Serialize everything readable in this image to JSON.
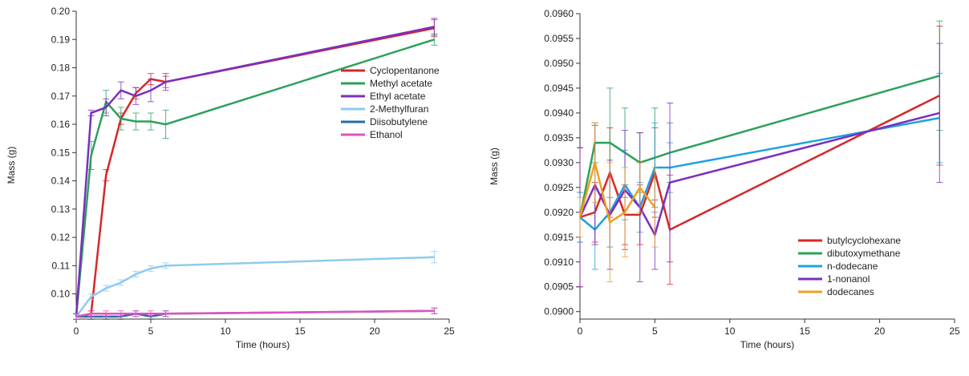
{
  "chart_data": [
    {
      "type": "line",
      "xlabel": "Time (hours)",
      "ylabel": "Mass (g)",
      "x": [
        0,
        1,
        2,
        3,
        4,
        5,
        6,
        24
      ],
      "xlim": [
        0,
        25
      ],
      "xticks": [
        0,
        5,
        10,
        15,
        20,
        25
      ],
      "ylim": [
        0.0911,
        0.2
      ],
      "yticks": [
        {
          "value": 0.1,
          "label": "0.10"
        },
        {
          "value": 0.11,
          "label": "0.11"
        },
        {
          "value": 0.12,
          "label": "0.12"
        },
        {
          "value": 0.13,
          "label": "0.13"
        },
        {
          "value": 0.14,
          "label": "0.14"
        },
        {
          "value": 0.15,
          "label": "0.15"
        },
        {
          "value": 0.16,
          "label": "0.16"
        },
        {
          "value": 0.17,
          "label": "0.17"
        },
        {
          "value": 0.18,
          "label": "0.18"
        },
        {
          "value": 0.19,
          "label": "0.19"
        },
        {
          "value": 0.2,
          "label": "0.20"
        }
      ],
      "legend": "center right",
      "series": [
        {
          "name": "Cyclopentanone",
          "color": "#d62728",
          "values": [
            0.092,
            0.093,
            0.142,
            0.162,
            0.171,
            0.176,
            0.175,
            0.194
          ],
          "errors": [
            0.001,
            0.001,
            0.002,
            0.002,
            0.002,
            0.002,
            0.002,
            0.003
          ]
        },
        {
          "name": "Methyl acetate",
          "color": "#2ca05a",
          "values": [
            0.092,
            0.149,
            0.168,
            0.162,
            0.161,
            0.161,
            0.16,
            0.19
          ],
          "errors": [
            0.001,
            0.005,
            0.004,
            0.004,
            0.003,
            0.003,
            0.005,
            0.002
          ]
        },
        {
          "name": "Ethyl acetate",
          "color": "#7b2fbe",
          "values": [
            0.092,
            0.164,
            0.166,
            0.172,
            0.17,
            0.172,
            0.175,
            0.1945
          ],
          "errors": [
            0.001,
            0.001,
            0.003,
            0.003,
            0.003,
            0.004,
            0.003,
            0.003
          ]
        },
        {
          "name": "2-Methylfuran",
          "color": "#8ecbee",
          "values": [
            0.092,
            0.099,
            0.102,
            0.104,
            0.107,
            0.109,
            0.11,
            0.113
          ],
          "errors": [
            0.001,
            0.001,
            0.001,
            0.001,
            0.001,
            0.001,
            0.001,
            0.002
          ]
        },
        {
          "name": "Diisobutylene",
          "color": "#1f6fa8",
          "values": [
            0.092,
            0.092,
            0.092,
            0.092,
            0.093,
            0.092,
            0.093,
            0.094
          ],
          "errors": [
            0.001,
            0.001,
            0.001,
            0.001,
            0.001,
            0.001,
            0.001,
            0.001
          ]
        },
        {
          "name": "Ethanol",
          "color": "#e052c0",
          "values": [
            0.092,
            0.093,
            0.093,
            0.093,
            0.093,
            0.093,
            0.093,
            0.094
          ],
          "errors": [
            0.001,
            0.001,
            0.001,
            0.001,
            0.001,
            0.001,
            0.001,
            0.001
          ]
        }
      ]
    },
    {
      "type": "line",
      "xlabel": "Time (hours)",
      "ylabel": "Mass (g)",
      "x": [
        0,
        1,
        2,
        3,
        4,
        5,
        6,
        24
      ],
      "xlim": [
        0,
        25
      ],
      "xticks": [
        0,
        5,
        10,
        15,
        20,
        25
      ],
      "ylim": [
        0.08985,
        0.096
      ],
      "yticks": [
        {
          "value": 0.09,
          "label": "0.0900"
        },
        {
          "value": 0.0905,
          "label": "0.0905"
        },
        {
          "value": 0.091,
          "label": "0.0910"
        },
        {
          "value": 0.0915,
          "label": "0.0915"
        },
        {
          "value": 0.092,
          "label": "0.0920"
        },
        {
          "value": 0.0925,
          "label": "0.0925"
        },
        {
          "value": 0.093,
          "label": "0.0930"
        },
        {
          "value": 0.0935,
          "label": "0.0935"
        },
        {
          "value": 0.094,
          "label": "0.0940"
        },
        {
          "value": 0.0945,
          "label": "0.0945"
        },
        {
          "value": 0.095,
          "label": "0.0950"
        },
        {
          "value": 0.0955,
          "label": "0.0955"
        },
        {
          "value": 0.096,
          "label": "0.0960"
        }
      ],
      "legend": "lower right",
      "series": [
        {
          "name": "butylcyclohexane",
          "color": "#d62728",
          "values": [
            0.0919,
            0.092,
            0.0928,
            0.09195,
            0.09195,
            0.0928,
            0.09165,
            0.09435
          ],
          "errors": [
            0.0014,
            0.0006,
            0.0009,
            0.0006,
            0.0006,
            0.0009,
            0.0011,
            0.0014
          ]
        },
        {
          "name": "dibutoxymethane",
          "color": "#2ca05a",
          "values": [
            0.0919,
            0.0934,
            0.0934,
            0.0932,
            0.093,
            0.0931,
            0.0932,
            0.09475
          ],
          "errors": [
            0.0005,
            0.0004,
            0.0011,
            0.0009,
            0.0006,
            0.001,
            0.0006,
            0.0011
          ]
        },
        {
          "name": "n-dodecane",
          "color": "#1ea1e0",
          "values": [
            0.0919,
            0.09165,
            0.092,
            0.09255,
            0.0921,
            0.0929,
            0.0929,
            0.0939
          ],
          "errors": [
            0.0005,
            0.0008,
            0.0007,
            0.0007,
            0.0005,
            0.0009,
            0.0005,
            0.0009
          ]
        },
        {
          "name": "1-nonanol",
          "color": "#7b2fbe",
          "values": [
            0.0919,
            0.09255,
            0.09195,
            0.09245,
            0.0921,
            0.09155,
            0.0926,
            0.094
          ],
          "errors": [
            0.0014,
            0.0012,
            0.0011,
            0.0012,
            0.0015,
            0.0007,
            0.0016,
            0.0014
          ]
        },
        {
          "name": "dodecanes",
          "color": "#f0a020",
          "values": [
            0.0919,
            0.093,
            0.0918,
            0.092,
            0.0925,
            0.0921,
            null,
            null
          ],
          "errors": [
            0.0004,
            0.0008,
            0.0012,
            0.0009,
            0.0005,
            0.0008,
            null,
            null
          ]
        }
      ]
    }
  ]
}
